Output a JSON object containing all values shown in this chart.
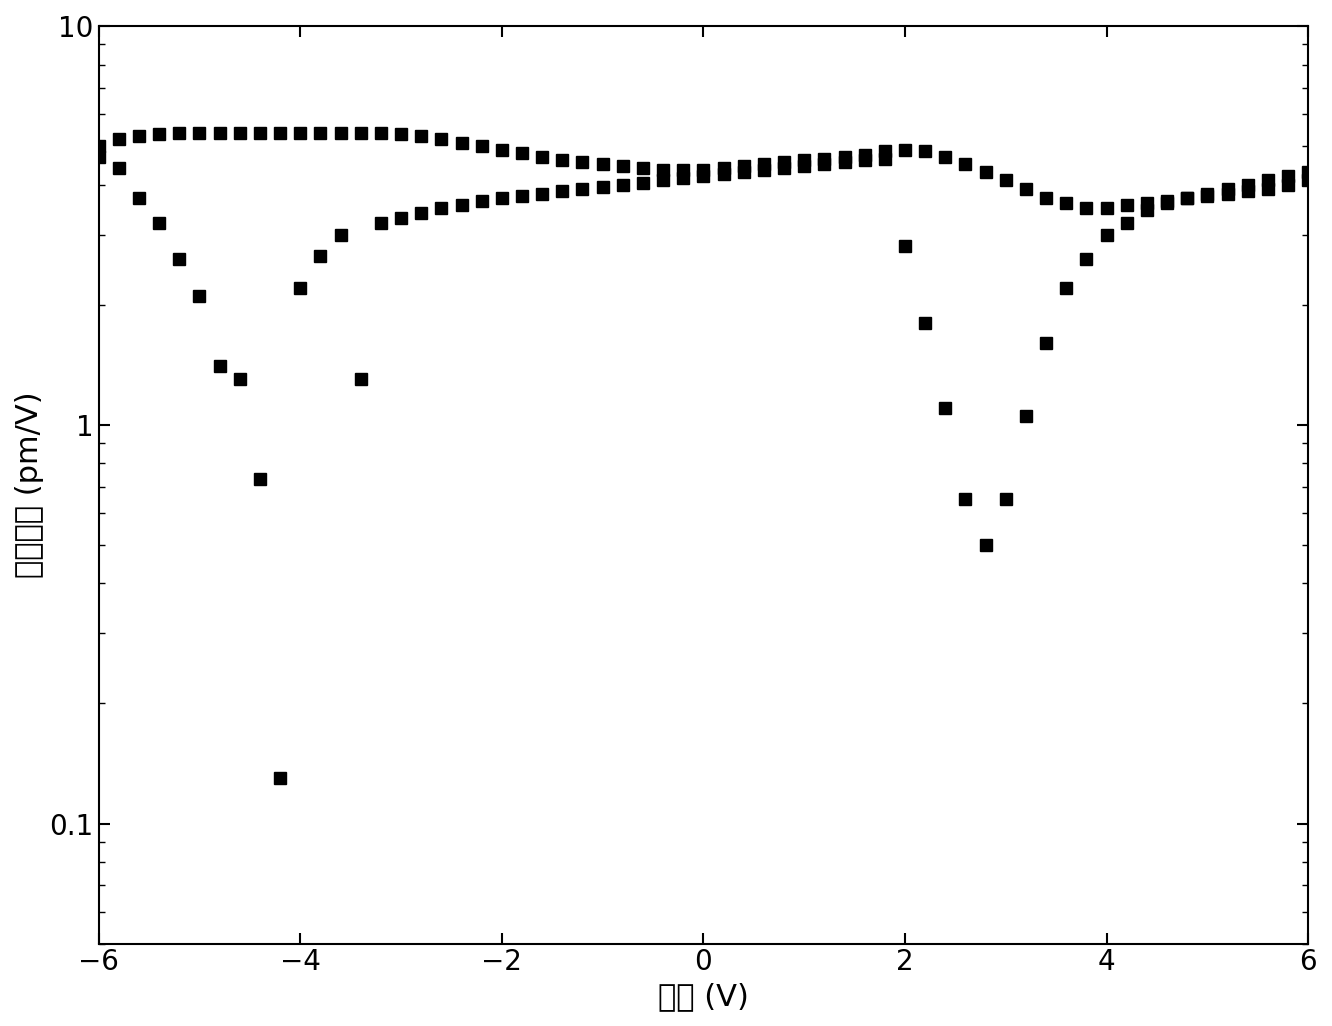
{
  "xlabel": "电压 (V)",
  "ylabel": "压电系数 (pm/V)",
  "xlim": [
    -6,
    6
  ],
  "ylim_log": [
    0.05,
    10
  ],
  "xticks": [
    -6,
    -4,
    -2,
    0,
    2,
    4,
    6
  ],
  "yticks_log": [
    0.1,
    1,
    10
  ],
  "marker_color": "#000000",
  "marker_size": 9,
  "background_color": "#ffffff",
  "label_fontsize": 22,
  "tick_fontsize": 20,
  "branch1_x": [
    -6.0,
    -5.8,
    -5.6,
    -5.4,
    -5.2,
    -5.0,
    -4.8,
    -4.6,
    -4.4,
    -4.2,
    -4.0,
    -3.8,
    -3.6,
    -3.4,
    -3.2,
    -3.0,
    -2.8,
    -2.6,
    -2.4,
    -2.2,
    -2.0,
    -1.8,
    -1.6,
    -1.4,
    -1.2,
    -1.0,
    -0.8,
    -0.6,
    -0.4,
    -0.2,
    0.0,
    0.2,
    0.4,
    0.6,
    0.8,
    1.0,
    1.2,
    1.4,
    1.6,
    1.8,
    2.0,
    2.2,
    2.4,
    2.6,
    2.8,
    3.0,
    3.2,
    3.4,
    3.6,
    3.8,
    4.0,
    4.2,
    4.4,
    4.6,
    4.8,
    5.0,
    5.2,
    5.4,
    5.6,
    5.8,
    6.0
  ],
  "branch1_y": [
    5.0,
    5.2,
    5.3,
    5.35,
    5.4,
    5.4,
    5.4,
    5.4,
    5.4,
    5.4,
    5.4,
    5.4,
    5.4,
    5.4,
    5.4,
    5.35,
    5.3,
    5.2,
    5.1,
    5.0,
    4.9,
    4.8,
    4.7,
    4.6,
    4.55,
    4.5,
    4.45,
    4.4,
    4.35,
    4.35,
    4.35,
    4.4,
    4.45,
    4.5,
    4.55,
    4.6,
    4.65,
    4.7,
    4.75,
    4.85,
    4.9,
    4.85,
    4.7,
    4.5,
    4.3,
    4.1,
    3.9,
    3.7,
    3.6,
    3.5,
    3.5,
    3.55,
    3.6,
    3.65,
    3.7,
    3.75,
    3.8,
    3.85,
    3.9,
    4.0,
    4.1
  ],
  "branch2_x": [
    -6.0,
    -5.8,
    -5.6,
    -5.4,
    -5.2,
    -5.0,
    -4.8,
    -4.6,
    -4.4,
    -4.2,
    -4.0,
    -3.8,
    -3.6,
    -3.4,
    -3.2,
    -3.0,
    -2.8,
    -2.6,
    -2.4,
    -2.2,
    -2.0,
    -1.8,
    -1.6,
    -1.4,
    -1.2,
    -1.0,
    -0.8,
    -0.6,
    -0.4,
    -0.2,
    0.0,
    0.2,
    0.4,
    0.6,
    0.8,
    1.0,
    1.2,
    1.4,
    1.6,
    1.8,
    2.0,
    2.2,
    2.4,
    2.6,
    2.8,
    3.0,
    3.2,
    3.4,
    3.6,
    3.8,
    4.0,
    4.2,
    4.4,
    4.6,
    4.8,
    5.0,
    5.2,
    5.4,
    5.6,
    5.8,
    6.0
  ],
  "branch2_y": [
    4.7,
    4.4,
    3.7,
    3.2,
    2.6,
    2.1,
    1.4,
    1.3,
    0.73,
    0.13,
    2.2,
    2.65,
    3.0,
    1.3,
    3.2,
    3.3,
    3.4,
    3.5,
    3.55,
    3.65,
    3.7,
    3.75,
    3.8,
    3.85,
    3.9,
    3.95,
    4.0,
    4.05,
    4.1,
    4.15,
    4.2,
    4.25,
    4.3,
    4.35,
    4.4,
    4.45,
    4.5,
    4.55,
    4.6,
    4.65,
    2.8,
    1.8,
    1.1,
    0.65,
    0.5,
    0.65,
    1.05,
    1.6,
    2.2,
    2.6,
    3.0,
    3.2,
    3.45,
    3.6,
    3.7,
    3.8,
    3.9,
    4.0,
    4.1,
    4.2,
    4.3
  ]
}
